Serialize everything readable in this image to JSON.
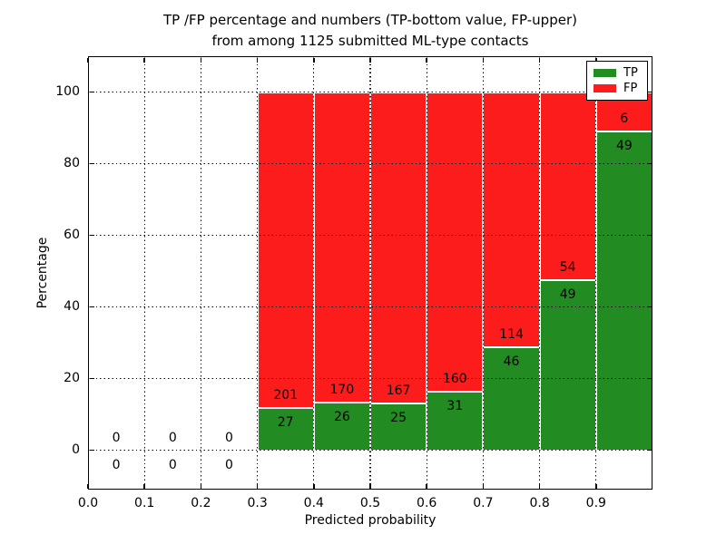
{
  "chart_data": {
    "type": "bar",
    "stacked": true,
    "title_line1": "TP /FP percentage and numbers (TP-bottom value, FP-upper)",
    "title_line2": "from among 1125 submitted ML-type contacts",
    "total_contacts": 1125,
    "xlabel": "Predicted probability",
    "ylabel": "Percentage",
    "xlim": [
      0.0,
      1.0
    ],
    "ylim": [
      -11,
      110
    ],
    "grid": true,
    "grid_style": "dotted",
    "legend_position": "upper right",
    "colors": {
      "tp": "#228b22",
      "fp": "#fc1c1c",
      "edge": "#ffffff",
      "grid": "#000000",
      "text": "#000000"
    },
    "legend": [
      {
        "label": "TP",
        "series": "tp"
      },
      {
        "label": "FP",
        "series": "fp"
      }
    ],
    "x_ticks": [
      {
        "v": 0.0,
        "label": "0.0"
      },
      {
        "v": 0.1,
        "label": "0.1"
      },
      {
        "v": 0.2,
        "label": "0.2"
      },
      {
        "v": 0.3,
        "label": "0.3"
      },
      {
        "v": 0.4,
        "label": "0.4"
      },
      {
        "v": 0.5,
        "label": "0.5"
      },
      {
        "v": 0.6,
        "label": "0.6"
      },
      {
        "v": 0.7,
        "label": "0.7"
      },
      {
        "v": 0.8,
        "label": "0.8"
      },
      {
        "v": 0.9,
        "label": "0.9"
      }
    ],
    "y_ticks": [
      {
        "v": 0,
        "label": "0"
      },
      {
        "v": 20,
        "label": "20"
      },
      {
        "v": 40,
        "label": "40"
      },
      {
        "v": 60,
        "label": "60"
      },
      {
        "v": 80,
        "label": "80"
      },
      {
        "v": 100,
        "label": "100"
      }
    ],
    "bin_width": 0.1,
    "bins": [
      {
        "start": 0.0,
        "tp": 0,
        "fp": 0
      },
      {
        "start": 0.1,
        "tp": 0,
        "fp": 0
      },
      {
        "start": 0.2,
        "tp": 0,
        "fp": 0
      },
      {
        "start": 0.3,
        "tp": 27,
        "fp": 201
      },
      {
        "start": 0.4,
        "tp": 26,
        "fp": 170
      },
      {
        "start": 0.5,
        "tp": 25,
        "fp": 167
      },
      {
        "start": 0.6,
        "tp": 31,
        "fp": 160
      },
      {
        "start": 0.7,
        "tp": 46,
        "fp": 114
      },
      {
        "start": 0.8,
        "tp": 49,
        "fp": 54
      },
      {
        "start": 0.9,
        "tp": 49,
        "fp": 6
      }
    ]
  }
}
